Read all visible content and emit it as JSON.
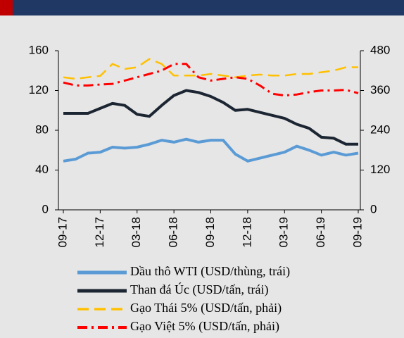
{
  "chart_data": {
    "type": "line",
    "categories": [
      "09-17",
      null,
      null,
      "12-17",
      null,
      null,
      "03-18",
      null,
      null,
      "06-18",
      null,
      null,
      "09-18",
      null,
      null,
      "12-18",
      null,
      null,
      "03-19",
      null,
      null,
      "06-19",
      null,
      null,
      "09-19"
    ],
    "ylim": [
      0,
      160
    ],
    "yticks": [
      0,
      40,
      80,
      120,
      160
    ],
    "y2lim": [
      0,
      480
    ],
    "y2ticks": [
      0,
      120,
      240,
      360,
      480
    ],
    "series": [
      {
        "name": "Dầu thô WTI (USD/thùng, trái)",
        "color": "#5b9bd5",
        "line_style": "solid",
        "values": [
          49,
          51,
          57,
          58,
          63,
          62,
          63,
          66,
          70,
          68,
          71,
          68,
          70,
          70,
          56,
          49,
          52,
          55,
          58,
          64,
          60,
          55,
          58,
          55,
          57
        ]
      },
      {
        "name": "Than đá Úc (USD/tấn, trái)",
        "color": "#1c2633",
        "line_style": "solid",
        "values": [
          97,
          97,
          97,
          102,
          107,
          105,
          96,
          94,
          105,
          115,
          120,
          118,
          114,
          108,
          100,
          101,
          98,
          95,
          92,
          86,
          82,
          73,
          72,
          66,
          66
        ]
      },
      {
        "name": "Gạo Thái 5% (USD/tấn, phải)",
        "color": "#ffc000",
        "line_style": "dash",
        "axis": "y2",
        "values": [
          400,
          395,
          400,
          404,
          440,
          425,
          430,
          455,
          440,
          405,
          405,
          405,
          410,
          405,
          400,
          405,
          408,
          405,
          405,
          410,
          410,
          415,
          420,
          430,
          430
        ]
      },
      {
        "name": "Gạo Việt 5% (USD/tấn, phải)",
        "color": "#ff0000",
        "line_style": "dashdot",
        "axis": "y2",
        "values": [
          384,
          375,
          375,
          378,
          380,
          390,
          400,
          410,
          420,
          440,
          440,
          400,
          390,
          395,
          400,
          395,
          375,
          350,
          345,
          348,
          355,
          360,
          360,
          362,
          352
        ]
      }
    ]
  }
}
